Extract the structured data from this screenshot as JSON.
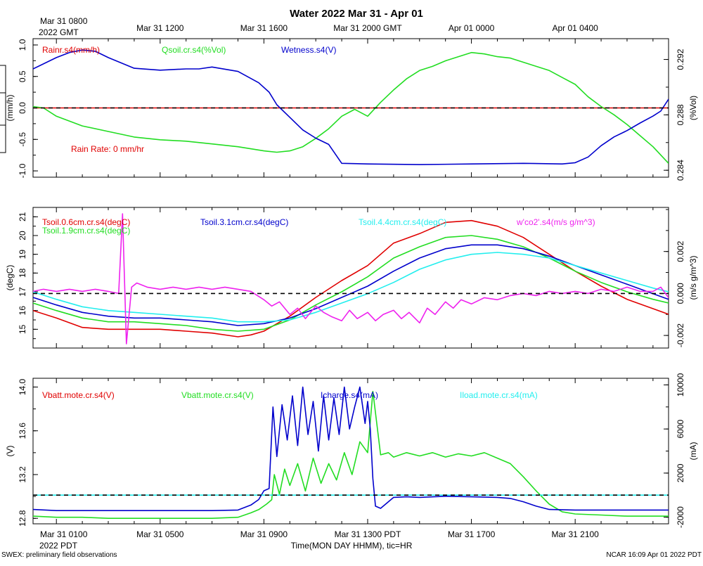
{
  "title": "Water 2022 Mar 31 - Apr 01",
  "top_time_labels": [
    {
      "text": "Mar 31 0800",
      "t": 0
    },
    {
      "text": "Mar 31 1200",
      "t": 4
    },
    {
      "text": "Mar 31 1600",
      "t": 8
    },
    {
      "text": "Mar 31 2000 GMT",
      "t": 12
    },
    {
      "text": "Apr 01 0000",
      "t": 16
    },
    {
      "text": "Apr 01 0400",
      "t": 20
    }
  ],
  "top_year_label": "2022 GMT",
  "bottom_time_labels": [
    {
      "text": "Mar 31 0100",
      "t": 0
    },
    {
      "text": "Mar 31 0500",
      "t": 4
    },
    {
      "text": "Mar 31 0900",
      "t": 8
    },
    {
      "text": "Mar 31 1300 PDT",
      "t": 12
    },
    {
      "text": "Mar 31 1700",
      "t": 16
    },
    {
      "text": "Mar 31 2100",
      "t": 20
    }
  ],
  "bottom_year_label": "2022 PDT",
  "x_axis_title": "Time(MON DAY HHMM), tic=HR",
  "footer_left": "SWEX: preliminary field observations",
  "footer_right": "NCAR 16:09 Apr 01 2022 PDT",
  "colors": {
    "red": "#e00000",
    "green": "#22dd22",
    "blue": "#0000cc",
    "cyan": "#22eeee",
    "magenta": "#ee22ee",
    "black": "#000000"
  },
  "chart_data": [
    {
      "type": "line",
      "panel": "water",
      "x_unit": "hours since Mar 31 0100 PDT",
      "xlim": [
        -0.9,
        23.6
      ],
      "left_axis": {
        "label": "(mm/h)",
        "ylim": [
          -1.1,
          1.1
        ],
        "ticks": [
          "1.0",
          "0.5",
          "0.0",
          "-0.5",
          "-1.0"
        ]
      },
      "right_axis": {
        "label": "(%Vol)",
        "ylim": [
          0.2835,
          0.2935
        ],
        "ticks": [
          "0.292",
          "0.288",
          "0.284"
        ]
      },
      "legend": [
        {
          "name": "Rainr.s4(mm/h)",
          "color": "red"
        },
        {
          "name": "Qsoil.cr.s4(%Vol)",
          "color": "green"
        },
        {
          "name": "Wetness.s4(V)",
          "color": "blue"
        }
      ],
      "annotation": "Rain Rate: 0 mm/hr",
      "zero_line_axis": "left",
      "series": [
        {
          "name": "Rainr.s4(mm/h)",
          "axis": "left",
          "color": "red",
          "x": [
            -0.9,
            23.6
          ],
          "y": [
            0.0,
            0.0
          ]
        },
        {
          "name": "Qsoil.cr.s4(%Vol)",
          "axis": "right",
          "color": "green",
          "x": [
            -0.9,
            -0.5,
            0.0,
            1.0,
            2.0,
            3.0,
            4.0,
            5.0,
            6.0,
            7.0,
            8.0,
            8.5,
            9.0,
            9.5,
            10.0,
            10.5,
            11.0,
            11.5,
            12.0,
            12.5,
            13.0,
            13.5,
            14.0,
            14.5,
            15.0,
            15.5,
            16.0,
            16.5,
            17.0,
            17.5,
            18.0,
            18.5,
            19.0,
            19.5,
            20.0,
            20.5,
            21.0,
            21.5,
            22.0,
            22.5,
            23.0,
            23.6
          ],
          "y": [
            0.2886,
            0.2885,
            0.2879,
            0.2872,
            0.2868,
            0.2864,
            0.2862,
            0.2861,
            0.2859,
            0.2857,
            0.2854,
            0.2853,
            0.2854,
            0.2857,
            0.2863,
            0.287,
            0.2879,
            0.2884,
            0.2879,
            0.2889,
            0.2898,
            0.2906,
            0.2912,
            0.2915,
            0.2919,
            0.2922,
            0.2925,
            0.2924,
            0.2922,
            0.2921,
            0.2918,
            0.2915,
            0.2912,
            0.2907,
            0.2902,
            0.2893,
            0.2886,
            0.288,
            0.2873,
            0.2865,
            0.2857,
            0.2845
          ]
        },
        {
          "name": "Wetness.s4(V)",
          "axis": "left",
          "color": "blue",
          "x": [
            -0.9,
            0.0,
            0.5,
            1.0,
            1.5,
            2.0,
            3.0,
            4.0,
            5.0,
            5.5,
            6.0,
            7.0,
            7.8,
            8.2,
            8.5,
            9.0,
            9.5,
            10.0,
            10.5,
            11.0,
            12.0,
            14.0,
            16.0,
            18.0,
            19.5,
            20.0,
            20.5,
            21.0,
            21.5,
            22.0,
            22.5,
            23.0,
            23.3,
            23.6
          ],
          "y": [
            0.62,
            0.8,
            0.88,
            0.92,
            0.9,
            0.8,
            0.63,
            0.6,
            0.62,
            0.62,
            0.65,
            0.58,
            0.4,
            0.25,
            0.05,
            -0.15,
            -0.35,
            -0.48,
            -0.58,
            -0.88,
            -0.89,
            -0.9,
            -0.89,
            -0.88,
            -0.89,
            -0.87,
            -0.78,
            -0.6,
            -0.46,
            -0.36,
            -0.24,
            -0.13,
            -0.05,
            0.14
          ]
        }
      ]
    },
    {
      "type": "line",
      "panel": "soil temperature",
      "x_unit": "hours since Mar 31 0100 PDT",
      "xlim": [
        -0.9,
        23.6
      ],
      "left_axis": {
        "label": "(degC)",
        "ylim": [
          14.0,
          21.5
        ],
        "ticks": [
          "21",
          "20",
          "19",
          "18",
          "17",
          "16",
          "15"
        ]
      },
      "right_axis": {
        "label": "(m/s g/m^3)",
        "ylim": [
          -0.0026,
          0.0041
        ],
        "ticks": [
          "0.002",
          "0.000",
          "-0.002"
        ]
      },
      "legend": [
        {
          "name": "Tsoil.0.6cm.cr.s4(degC)",
          "color": "red"
        },
        {
          "name": "Tsoil.1.9cm.cr.s4(degC)",
          "color": "green"
        },
        {
          "name": "Tsoil.3.1cm.cr.s4(degC)",
          "color": "blue"
        },
        {
          "name": "Tsoil.4.4cm.cr.s4(degC)",
          "color": "cyan"
        },
        {
          "name": "w'co2'.s4(m/s g/m^3)",
          "color": "magenta"
        }
      ],
      "zero_line_axis": "right",
      "series": [
        {
          "name": "Tsoil.0.6cm.cr.s4(degC)",
          "axis": "left",
          "color": "red",
          "x": [
            -0.9,
            0.0,
            1.0,
            2.0,
            3.0,
            4.0,
            5.0,
            6.0,
            7.0,
            7.5,
            8.0,
            9.0,
            10.0,
            11.0,
            12.0,
            13.0,
            14.0,
            15.0,
            16.0,
            17.0,
            18.0,
            19.0,
            20.0,
            21.0,
            22.0,
            23.0,
            23.6
          ],
          "y": [
            16.0,
            15.6,
            15.1,
            15.0,
            15.0,
            15.0,
            14.9,
            14.8,
            14.6,
            14.7,
            14.9,
            15.7,
            16.7,
            17.6,
            18.4,
            19.6,
            20.1,
            20.7,
            20.8,
            20.5,
            19.9,
            19.0,
            18.1,
            17.3,
            16.6,
            16.1,
            15.8
          ]
        },
        {
          "name": "Tsoil.1.9cm.cr.s4(degC)",
          "axis": "left",
          "color": "green",
          "x": [
            -0.9,
            0.0,
            1.0,
            2.0,
            3.0,
            4.0,
            5.0,
            6.0,
            7.0,
            8.0,
            9.0,
            10.0,
            11.0,
            12.0,
            13.0,
            14.0,
            15.0,
            16.0,
            17.0,
            18.0,
            19.0,
            20.0,
            21.0,
            22.0,
            23.0,
            23.6
          ],
          "y": [
            16.4,
            16.0,
            15.6,
            15.4,
            15.4,
            15.3,
            15.2,
            15.0,
            14.9,
            15.0,
            15.5,
            16.3,
            17.0,
            17.8,
            18.8,
            19.4,
            19.9,
            20.0,
            19.8,
            19.4,
            18.8,
            18.1,
            17.5,
            17.0,
            16.6,
            16.4
          ]
        },
        {
          "name": "Tsoil.3.1cm.cr.s4(degC)",
          "axis": "left",
          "color": "blue",
          "x": [
            -0.9,
            0.0,
            1.0,
            2.0,
            3.0,
            4.0,
            5.0,
            6.0,
            7.0,
            8.0,
            9.0,
            10.0,
            11.0,
            12.0,
            13.0,
            14.0,
            15.0,
            16.0,
            17.0,
            18.0,
            19.0,
            20.0,
            21.0,
            22.0,
            23.0,
            23.6
          ],
          "y": [
            16.7,
            16.3,
            15.9,
            15.7,
            15.6,
            15.6,
            15.5,
            15.4,
            15.2,
            15.3,
            15.6,
            16.1,
            16.7,
            17.3,
            18.1,
            18.8,
            19.3,
            19.5,
            19.5,
            19.3,
            18.9,
            18.4,
            17.9,
            17.4,
            16.9,
            16.6
          ]
        },
        {
          "name": "Tsoil.4.4cm.cr.s4(degC)",
          "axis": "left",
          "color": "cyan",
          "x": [
            -0.9,
            0.0,
            1.0,
            2.0,
            3.0,
            4.0,
            5.0,
            6.0,
            7.0,
            8.0,
            9.0,
            10.0,
            11.0,
            12.0,
            13.0,
            14.0,
            15.0,
            16.0,
            17.0,
            18.0,
            19.0,
            20.0,
            21.0,
            22.0,
            23.0,
            23.6
          ],
          "y": [
            17.0,
            16.6,
            16.2,
            16.0,
            15.9,
            15.8,
            15.7,
            15.6,
            15.4,
            15.4,
            15.5,
            15.9,
            16.4,
            16.9,
            17.5,
            18.2,
            18.7,
            19.0,
            19.1,
            19.0,
            18.8,
            18.4,
            18.0,
            17.6,
            17.2,
            17.0
          ]
        },
        {
          "name": "w'co2'.s4(m/s g/m^3)",
          "axis": "right",
          "color": "magenta",
          "x": [
            -0.9,
            -0.5,
            0.0,
            0.5,
            1.0,
            1.5,
            2.0,
            2.4,
            2.55,
            2.7,
            2.9,
            3.1,
            3.5,
            4.0,
            4.5,
            5.0,
            5.5,
            6.0,
            6.5,
            7.0,
            7.5,
            8.0,
            8.3,
            8.6,
            9.0,
            9.3,
            9.6,
            10.0,
            10.3,
            10.6,
            11.0,
            11.3,
            11.6,
            12.0,
            12.3,
            12.6,
            13.0,
            13.3,
            13.6,
            14.0,
            14.3,
            14.6,
            15.0,
            15.3,
            15.6,
            16.0,
            16.5,
            17.0,
            17.5,
            18.0,
            18.5,
            19.0,
            19.5,
            20.0,
            20.5,
            21.0,
            21.5,
            22.0,
            22.5,
            23.0,
            23.3,
            23.6
          ],
          "y": [
            0.0001,
            0.0002,
            0.0001,
            0.0002,
            0.0001,
            0.0002,
            0.0001,
            0.0,
            0.0038,
            -0.0024,
            0.0003,
            0.0005,
            0.0003,
            0.0002,
            0.0003,
            0.0002,
            0.0003,
            0.0002,
            0.0003,
            0.0002,
            0.0001,
            -0.0003,
            -0.0006,
            -0.0004,
            -0.001,
            -0.0007,
            -0.0012,
            -0.0006,
            -0.0009,
            -0.0011,
            -0.0013,
            -0.0008,
            -0.0012,
            -0.0009,
            -0.0013,
            -0.001,
            -0.0008,
            -0.0012,
            -0.0009,
            -0.0014,
            -0.0007,
            -0.001,
            -0.0004,
            -0.0007,
            -0.0003,
            -0.0005,
            -0.0002,
            -0.0003,
            -0.0001,
            0.0,
            -0.0001,
            0.0001,
            0.0,
            0.0001,
            0.0,
            0.0002,
            0.0001,
            0.0003,
            0.0001,
            0.0001,
            0.0003,
            -0.0002
          ]
        }
      ]
    },
    {
      "type": "line",
      "panel": "battery",
      "x_unit": "hours since Mar 31 0100 PDT",
      "xlim": [
        -0.9,
        23.6
      ],
      "left_axis": {
        "label": "(V)",
        "ylim": [
          12.75,
          14.08
        ],
        "ticks": [
          "14.0",
          "13.6",
          "13.2",
          "12.8"
        ]
      },
      "right_axis": {
        "label": "(mA)",
        "ylim": [
          -2600,
          10600
        ],
        "ticks": [
          "10000",
          "6000",
          "2000",
          "-2000"
        ]
      },
      "legend": [
        {
          "name": "Vbatt.mote.cr.s4(V)",
          "color": "red"
        },
        {
          "name": "Vbatt.mote.cr.s4(V)",
          "color": "green"
        },
        {
          "name": "Icharge.s4(mA)",
          "color": "blue"
        },
        {
          "name": "Iload.mote.cr.s4(mA)",
          "color": "cyan"
        }
      ],
      "zero_line_axis": "right",
      "series": [
        {
          "name": "Vbatt.mote.cr.s4(V)",
          "axis": "left",
          "color": "green",
          "x": [
            -0.9,
            0.0,
            1.0,
            2.0,
            3.0,
            4.0,
            5.0,
            6.0,
            7.0,
            7.5,
            7.8,
            8.1,
            8.3,
            8.4,
            8.6,
            8.8,
            9.0,
            9.3,
            9.6,
            9.9,
            10.2,
            10.5,
            10.8,
            11.1,
            11.4,
            11.7,
            12.0,
            12.2,
            12.5,
            12.8,
            13.0,
            13.5,
            14.0,
            14.5,
            15.0,
            15.5,
            16.0,
            16.5,
            17.0,
            17.5,
            18.0,
            18.5,
            19.0,
            19.5,
            20.0,
            21.0,
            22.0,
            23.0,
            23.6
          ],
          "y": [
            12.82,
            12.81,
            12.81,
            12.8,
            12.8,
            12.8,
            12.8,
            12.8,
            12.81,
            12.85,
            12.88,
            12.93,
            12.97,
            13.2,
            13.02,
            13.25,
            13.1,
            13.3,
            13.05,
            13.35,
            13.12,
            13.3,
            13.15,
            13.4,
            13.2,
            13.5,
            13.4,
            13.96,
            13.38,
            13.4,
            13.36,
            13.4,
            13.37,
            13.4,
            13.36,
            13.39,
            13.37,
            13.4,
            13.35,
            13.3,
            13.18,
            13.05,
            12.93,
            12.86,
            12.84,
            12.83,
            12.82,
            12.82,
            12.82
          ]
        },
        {
          "name": "Icharge.s4(mA)",
          "axis": "right",
          "color": "blue",
          "x": [
            -0.9,
            0.0,
            1.0,
            2.0,
            3.0,
            4.0,
            5.0,
            6.0,
            7.0,
            7.5,
            7.8,
            8.0,
            8.2,
            8.35,
            8.5,
            8.7,
            8.9,
            9.1,
            9.3,
            9.5,
            9.7,
            9.9,
            10.1,
            10.3,
            10.5,
            10.7,
            10.9,
            11.1,
            11.3,
            11.5,
            11.7,
            11.9,
            12.0,
            12.1,
            12.2,
            12.3,
            12.5,
            13.0,
            13.5,
            14.0,
            15.0,
            16.0,
            17.0,
            17.5,
            18.0,
            18.5,
            19.0,
            20.0,
            21.0,
            22.0,
            23.0,
            23.6
          ],
          "y": [
            -1300,
            -1400,
            -1400,
            -1400,
            -1400,
            -1400,
            -1400,
            -1400,
            -1350,
            -900,
            -400,
            400,
            600,
            8000,
            3500,
            8200,
            5000,
            9000,
            4500,
            9800,
            5500,
            8500,
            4000,
            9000,
            5000,
            8800,
            5500,
            9800,
            6000,
            8000,
            9800,
            6500,
            8500,
            6000,
            1500,
            -1000,
            -1200,
            -200,
            -150,
            -200,
            -100,
            -150,
            -200,
            -300,
            -600,
            -1000,
            -1300,
            -1350,
            -1350,
            -1350,
            -1350,
            -1350
          ]
        },
        {
          "name": "Iload.mote.cr.s4(mA)",
          "axis": "right",
          "color": "cyan",
          "x": [
            -0.9,
            23.6
          ],
          "y": [
            0,
            0
          ]
        }
      ]
    }
  ]
}
